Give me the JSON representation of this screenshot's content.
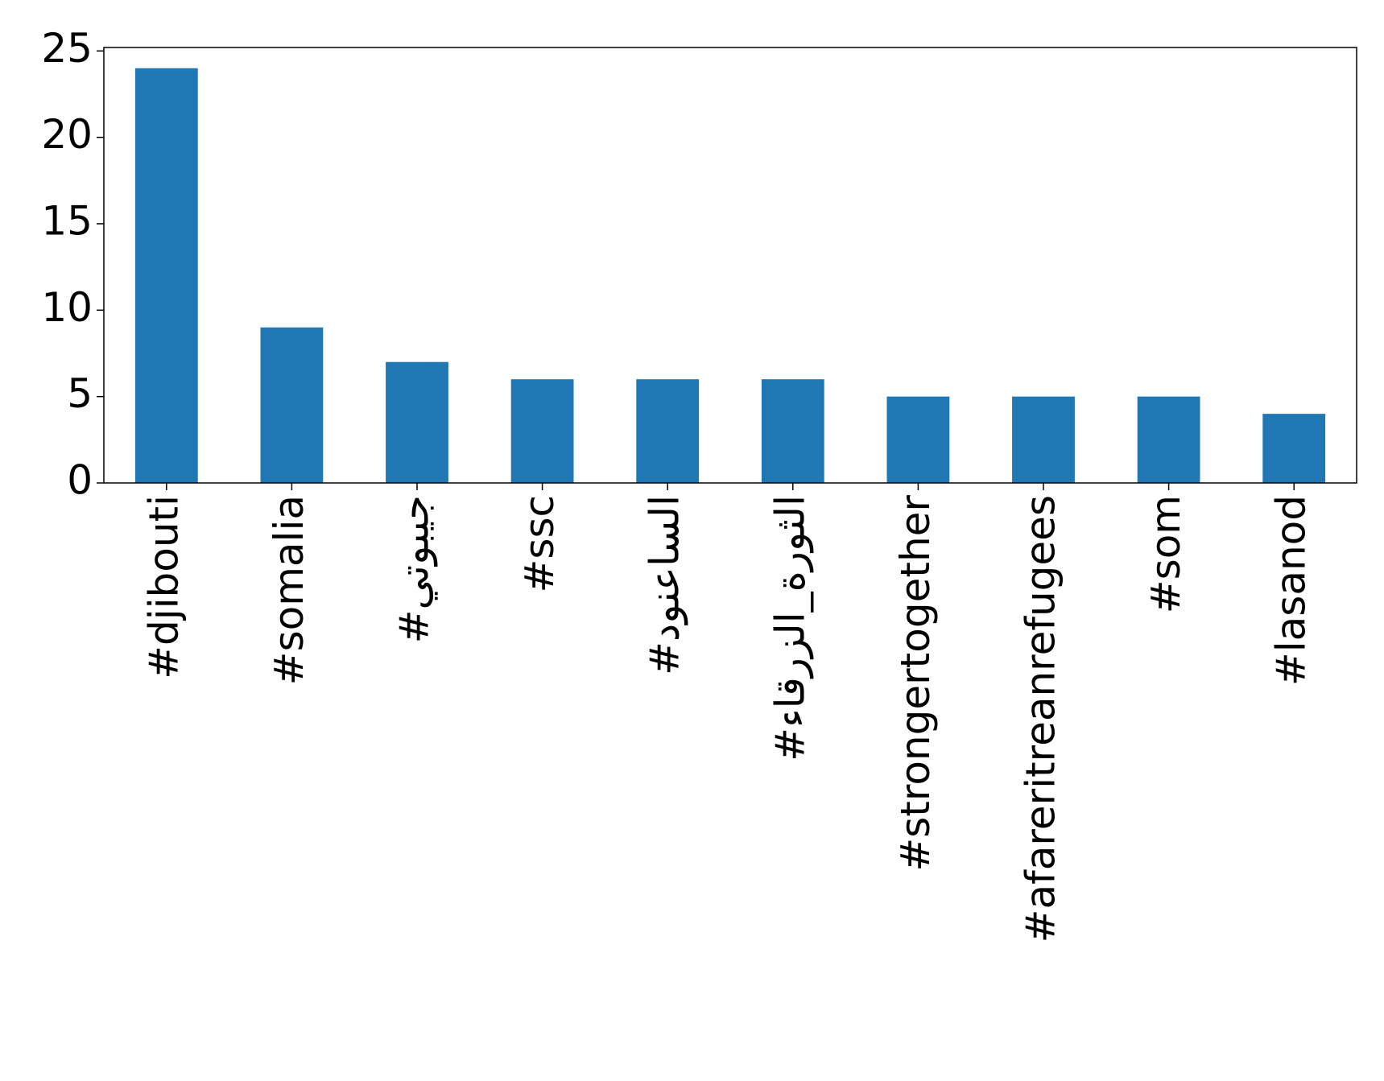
{
  "chart_data": {
    "type": "bar",
    "categories": [
      "#djibouti",
      "#somalia",
      "#جيبوتي",
      "#ssc",
      "#الساعنود",
      "#الثورة_الزرقاء",
      "#strongertogether",
      "#afareritreanrefugees",
      "#som",
      "#lasanod"
    ],
    "values": [
      24,
      9,
      7,
      6,
      6,
      6,
      5,
      5,
      5,
      4
    ],
    "color": "#1f77b4",
    "ylim": [
      0,
      25.2
    ],
    "yticks": [
      0,
      5,
      10,
      15,
      20,
      25
    ],
    "grid": false
  }
}
